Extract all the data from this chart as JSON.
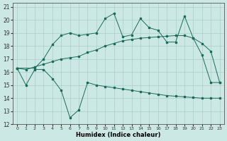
{
  "xlabel": "Humidex (Indice chaleur)",
  "xlim": [
    -0.5,
    23.5
  ],
  "ylim": [
    12,
    21.3
  ],
  "yticks": [
    12,
    13,
    14,
    15,
    16,
    17,
    18,
    19,
    20,
    21
  ],
  "xticks": [
    0,
    1,
    2,
    3,
    4,
    5,
    6,
    7,
    8,
    9,
    10,
    11,
    12,
    13,
    14,
    15,
    16,
    17,
    18,
    19,
    20,
    21,
    22,
    23
  ],
  "bg_color": "#cce8e4",
  "grid_color": "#aacfcc",
  "line_color": "#1a6b5a",
  "line1_x": [
    0,
    1,
    2,
    3,
    4,
    5,
    6,
    7,
    8,
    9,
    10,
    11,
    12,
    13,
    14,
    15,
    16,
    17,
    18,
    19,
    20,
    21,
    22,
    23
  ],
  "line1_y": [
    16.3,
    15.0,
    16.2,
    16.2,
    15.5,
    14.6,
    12.5,
    13.1,
    15.2,
    15.0,
    14.9,
    14.8,
    14.7,
    14.6,
    14.5,
    14.4,
    14.3,
    14.2,
    14.15,
    14.1,
    14.05,
    14.0,
    14.0,
    14.0
  ],
  "line2_x": [
    0,
    1,
    2,
    3,
    4,
    5,
    6,
    7,
    8,
    9,
    10,
    11,
    12,
    13,
    14,
    15,
    16,
    17,
    18,
    19,
    20,
    21,
    22,
    23
  ],
  "line2_y": [
    16.3,
    16.2,
    16.4,
    16.6,
    16.8,
    17.0,
    17.1,
    17.2,
    17.5,
    17.7,
    18.0,
    18.2,
    18.4,
    18.5,
    18.6,
    18.65,
    18.7,
    18.75,
    18.8,
    18.8,
    18.6,
    18.2,
    17.6,
    15.2
  ],
  "line3_x": [
    0,
    2,
    3,
    4,
    5,
    6,
    7,
    8,
    9,
    10,
    11,
    12,
    13,
    14,
    15,
    16,
    17,
    18,
    19,
    20,
    21,
    22,
    23
  ],
  "line3_y": [
    16.3,
    16.3,
    17.0,
    18.1,
    18.8,
    19.0,
    18.8,
    18.9,
    19.0,
    20.1,
    20.5,
    18.7,
    18.85,
    20.1,
    19.4,
    19.2,
    18.3,
    18.3,
    20.3,
    18.6,
    17.3,
    15.2,
    15.2
  ]
}
